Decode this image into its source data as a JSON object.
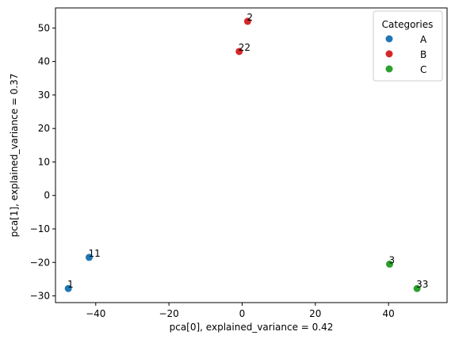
{
  "chart_data": {
    "type": "scatter",
    "title": "",
    "xlabel": "pca[0], explained_variance = 0.42",
    "ylabel": "pca[1], explained_variance = 0.37",
    "xlim": [
      -51,
      56
    ],
    "ylim": [
      -32,
      56
    ],
    "xticks": [
      -40,
      -20,
      0,
      20,
      40
    ],
    "yticks": [
      -30,
      -20,
      -10,
      0,
      10,
      20,
      30,
      40,
      50
    ],
    "grid": false,
    "legend": {
      "title": "Categories",
      "placement": "top-right"
    },
    "series": [
      {
        "name": "A",
        "color": "#1f77b4",
        "points": [
          {
            "label": "1",
            "x": -47.5,
            "y": -27.8
          },
          {
            "label": "11",
            "x": -41.8,
            "y": -18.5
          }
        ]
      },
      {
        "name": "B",
        "color": "#d62728",
        "points": [
          {
            "label": "2",
            "x": 1.5,
            "y": 52.0
          },
          {
            "label": "22",
            "x": -0.8,
            "y": 43.0
          }
        ]
      },
      {
        "name": "C",
        "color": "#2ca02c",
        "points": [
          {
            "label": "3",
            "x": 40.3,
            "y": -20.5
          },
          {
            "label": "33",
            "x": 47.8,
            "y": -27.8
          }
        ]
      }
    ]
  }
}
